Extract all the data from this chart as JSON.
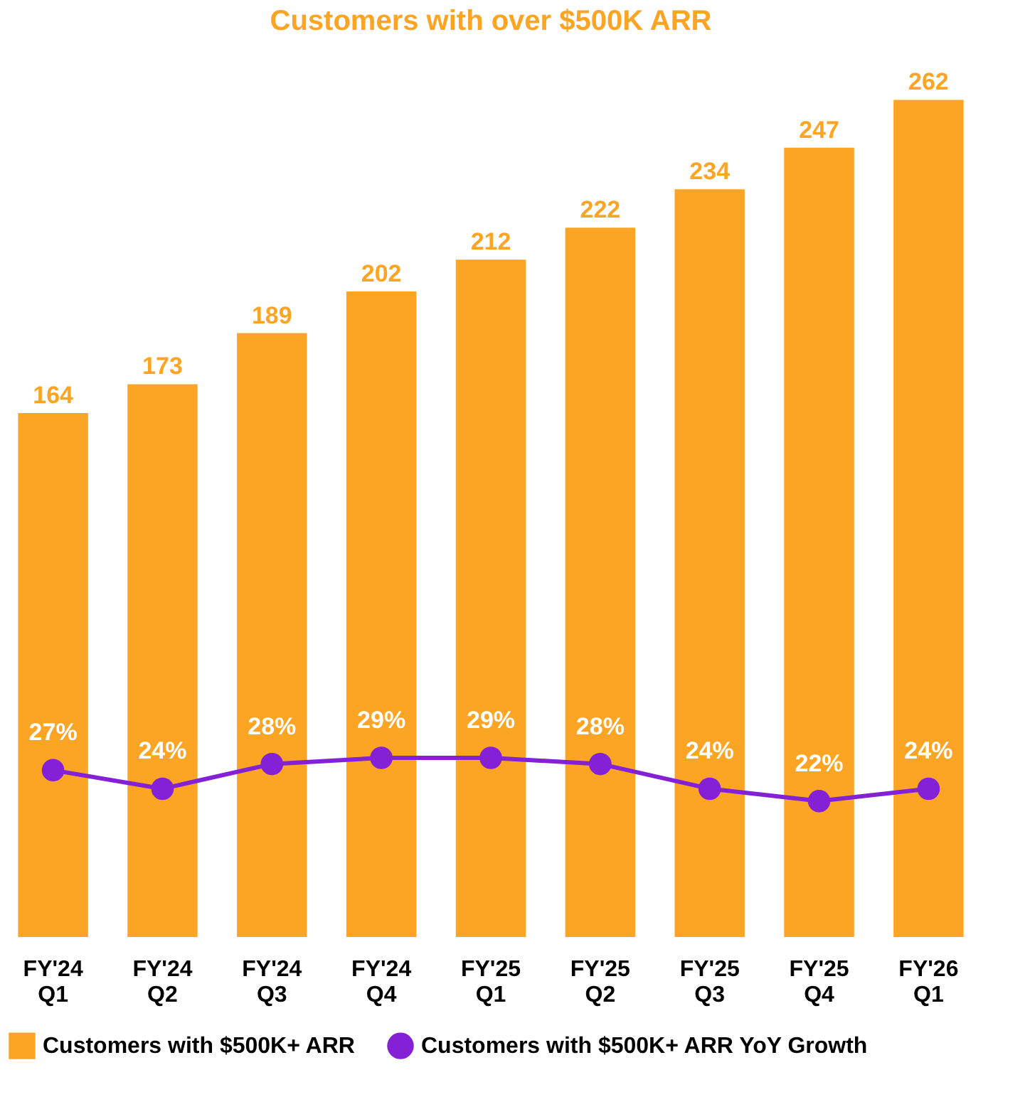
{
  "chart_data": {
    "type": "bar",
    "title": "Customers with over $500K ARR",
    "categories": [
      "FY'24 Q1",
      "FY'24 Q2",
      "FY'24 Q3",
      "FY'24 Q4",
      "FY'25 Q1",
      "FY'25 Q2",
      "FY'25 Q3",
      "FY'25 Q4",
      "FY'26 Q1"
    ],
    "series": [
      {
        "name": "Customers with $500K+ ARR",
        "color": "#fca524",
        "values": [
          164,
          173,
          189,
          202,
          212,
          222,
          234,
          247,
          262
        ],
        "value_labels": [
          "164",
          "173",
          "189",
          "202",
          "212",
          "222",
          "234",
          "247",
          "262"
        ]
      },
      {
        "name": "Customers with $500K+ ARR YoY Growth",
        "type": "line",
        "axis": "y2",
        "color": "#8420d6",
        "values": [
          27,
          24,
          28,
          29,
          29,
          28,
          24,
          22,
          24
        ],
        "value_labels": [
          "27%",
          "24%",
          "28%",
          "29%",
          "29%",
          "28%",
          "24%",
          "22%",
          "24%"
        ]
      }
    ],
    "tick_labels": "x",
    "grid": false,
    "legend": "bottom",
    "marker": "circle",
    "line_style": "solid"
  }
}
